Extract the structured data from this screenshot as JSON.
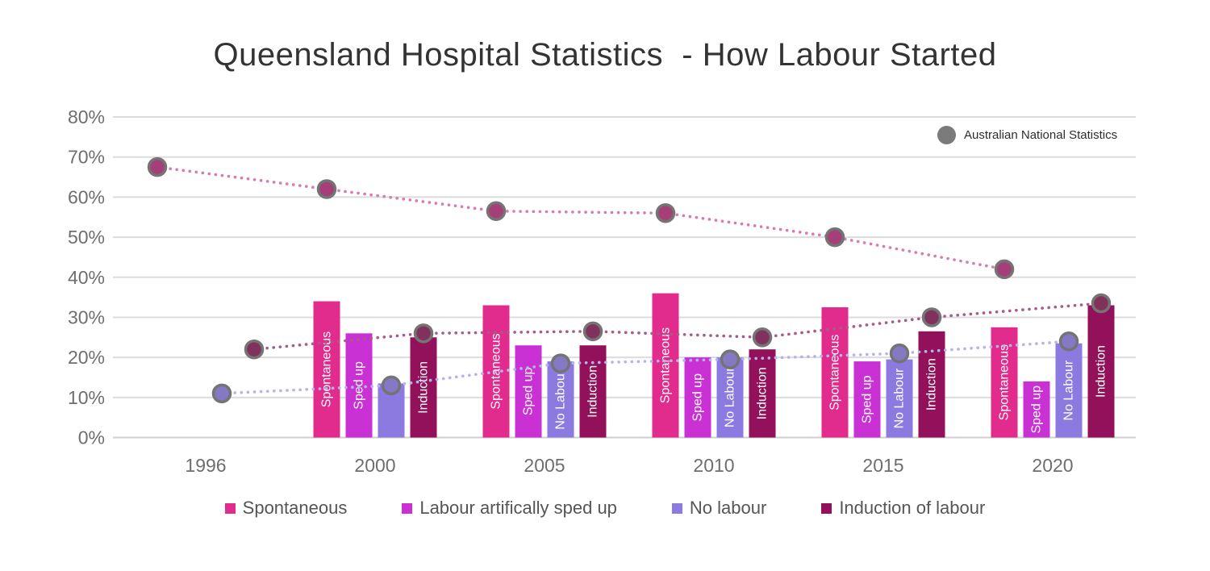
{
  "title": "Queensland Hospital Statistics  - How Labour Started",
  "national_legend": {
    "label": "Australian National Statistics",
    "marker_color": "#7b7b7b"
  },
  "chart_data": {
    "type": "bar",
    "title": "Queensland Hospital Statistics - How Labour Started",
    "categories": [
      "1996",
      "2000",
      "2005",
      "2010",
      "2015",
      "2020"
    ],
    "ylabel": "",
    "xlabel": "",
    "ylim": [
      0,
      80
    ],
    "ytick_step": 10,
    "ytick_labels": [
      "0%",
      "10%",
      "20%",
      "30%",
      "40%",
      "50%",
      "60%",
      "70%",
      "80%"
    ],
    "grid": true,
    "bar_series": [
      {
        "name": "Spontaneous",
        "bar_label": "Spontaneous",
        "color": "#e12b8d",
        "slot": -60,
        "values": {
          "2000": 34,
          "2005": 33,
          "2010": 36,
          "2015": 32.5,
          "2020": 27.5
        }
      },
      {
        "name": "Labour artifically sped up",
        "bar_label": "Sped up",
        "color": "#c931d4",
        "slot": -20,
        "values": {
          "2000": 26,
          "2005": 23,
          "2010": 20,
          "2015": 19,
          "2020": 14
        }
      },
      {
        "name": "No labour",
        "bar_label": "No Labour",
        "color": "#8c7ae0",
        "slot": 20,
        "no_label_at": [
          "2000"
        ],
        "values": {
          "2000": 13.5,
          "2005": 19,
          "2010": 20,
          "2015": 19.5,
          "2020": 23.5
        }
      },
      {
        "name": "Induction of labour",
        "bar_label": "Induction",
        "color": "#93115a",
        "slot": 60,
        "values": {
          "2000": 25,
          "2005": 23,
          "2010": 22,
          "2015": 26.5,
          "2020": 33
        }
      }
    ],
    "line_series": [
      {
        "name": "Spontaneous - Australian National Statistics",
        "line_color": "#d67cae",
        "marker_fill": "#a63f78",
        "marker_ring": "#747474",
        "slot": -60,
        "values": {
          "1996": 67.5,
          "2000": 62,
          "2005": 56.5,
          "2010": 56,
          "2015": 50,
          "2020": 42
        }
      },
      {
        "name": "No labour - Australian National Statistics",
        "line_color": "#b7b2ea",
        "marker_fill": "#8579c5",
        "marker_ring": "#747474",
        "slot": 20,
        "values": {
          "1996": 11,
          "2000": 13,
          "2005": 18.5,
          "2010": 19.5,
          "2015": 21,
          "2020": 24
        }
      },
      {
        "name": "Induction - Australian National Statistics",
        "line_color": "#a65c85",
        "marker_fill": "#80325c",
        "marker_ring": "#747474",
        "slot": 60,
        "values": {
          "1996": 22,
          "2000": 26,
          "2005": 26.5,
          "2010": 25,
          "2015": 30,
          "2020": 33.5
        }
      }
    ],
    "legend_position": "bottom",
    "legend": [
      {
        "label": "Spontaneous",
        "color": "#e12b8d"
      },
      {
        "label": "Labour artifically sped up",
        "color": "#c931d4"
      },
      {
        "label": "No labour",
        "color": "#8c7ae0"
      },
      {
        "label": "Induction of labour",
        "color": "#93115a"
      }
    ],
    "colors": {
      "gridline": "#dcdcdc",
      "tick_text": "#6e6e6e",
      "title_text": "#333333"
    }
  }
}
